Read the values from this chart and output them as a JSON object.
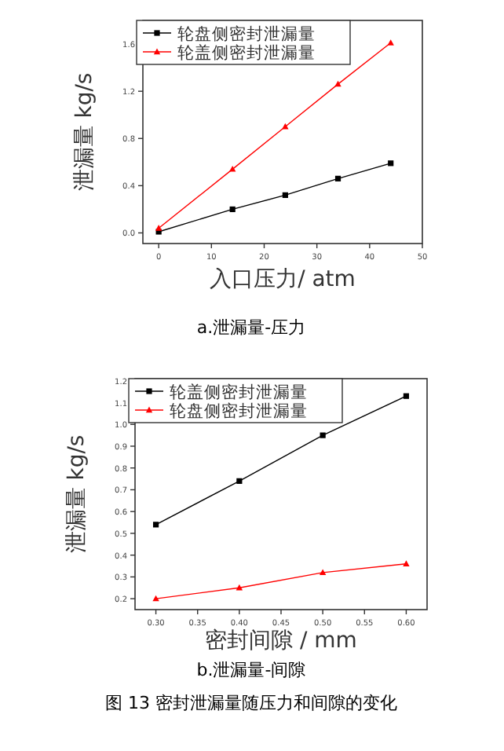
{
  "chart_data": [
    {
      "type": "line",
      "xlabel": "入口压力/ atm",
      "ylabel": "泄漏量 kg/s",
      "x": [
        0,
        14,
        24,
        34,
        44
      ],
      "series": [
        {
          "name": "轮盘侧密封泄漏量",
          "color": "#000000",
          "marker": "square",
          "values": [
            0.01,
            0.2,
            0.32,
            0.46,
            0.59
          ]
        },
        {
          "name": "轮盖侧密封泄漏量",
          "color": "#ff0000",
          "marker": "triangle",
          "values": [
            0.04,
            0.54,
            0.9,
            1.26,
            1.61
          ]
        }
      ],
      "xlim": [
        -3,
        50
      ],
      "xticks": [
        0,
        10,
        20,
        30,
        40,
        50
      ],
      "ylim": [
        -0.09,
        1.8
      ],
      "yticks": [
        {
          "value": 0,
          "label": "0.0"
        },
        0.4,
        0.8,
        1.2,
        1.6
      ],
      "legend": "top left",
      "grid": false,
      "annotations": [
        "a.泄漏量-压力"
      ]
    },
    {
      "type": "line",
      "xlabel": "密封间隙 / mm",
      "ylabel": "泄漏量 kg/s",
      "x": [
        0.3,
        0.4,
        0.5,
        0.6
      ],
      "series": [
        {
          "name": "轮盖侧密封泄漏量",
          "color": "#000000",
          "marker": "square",
          "values": [
            0.54,
            0.74,
            0.95,
            1.13
          ]
        },
        {
          "name": "轮盘侧密封泄漏量",
          "color": "#ff0000",
          "marker": "triangle",
          "values": [
            0.2,
            0.25,
            0.32,
            0.36
          ]
        }
      ],
      "xlim": [
        0.275,
        0.625
      ],
      "xticks": [
        {
          "value": 0.3,
          "label": "0.30"
        },
        0.35,
        {
          "value": 0.4,
          "label": "0.40"
        },
        0.45,
        {
          "value": 0.5,
          "label": "0.50"
        },
        0.55,
        {
          "value": 0.6,
          "label": "0.60"
        }
      ],
      "ylim": [
        0.15,
        1.21
      ],
      "yticks": [
        0.2,
        0.3,
        0.4,
        0.5,
        0.6,
        0.7,
        0.8,
        0.9,
        {
          "value": 1,
          "label": "1.0"
        },
        1.1,
        1.2
      ],
      "legend": "top left",
      "grid": false,
      "annotations": [
        "b.泄漏量-间隙",
        "图 13  密封泄漏量随压力和间隙的变化"
      ]
    }
  ]
}
